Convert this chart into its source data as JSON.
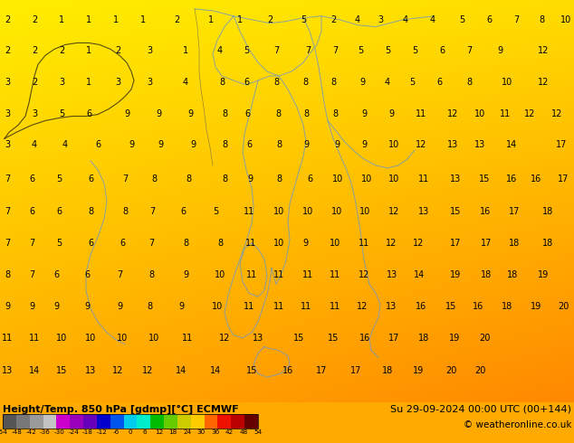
{
  "title_left": "Height/Temp. 850 hPa [gdmp][°C] ECMWF",
  "title_right": "Su 29-09-2024 00:00 UTC (00+144)",
  "copyright": "© weatheronline.co.uk",
  "colorbar_ticks": [
    -54,
    -48,
    -42,
    -36,
    -30,
    -24,
    -18,
    -12,
    -6,
    0,
    6,
    12,
    18,
    24,
    30,
    36,
    42,
    48,
    54
  ],
  "colorbar_colors": [
    "#555555",
    "#787878",
    "#9a9a9a",
    "#c3c3c3",
    "#cc00cc",
    "#9900bb",
    "#6600bb",
    "#0000cc",
    "#0055ee",
    "#00ccee",
    "#00eecc",
    "#00bb00",
    "#66cc00",
    "#cccc00",
    "#ffcc00",
    "#ff6600",
    "#ee1100",
    "#bb0000",
    "#660000"
  ],
  "bg_gradient": [
    [
      "#ffee00",
      "#ffdd00"
    ],
    [
      "#ffaa00",
      "#ff8800"
    ]
  ],
  "coastline_color": "#7799bb",
  "border_color": "#333366",
  "font_color": "#000000",
  "bottom_bg": "#ffaa00",
  "numbers": [
    [
      2,
      2,
      1,
      1,
      1,
      1,
      2,
      1,
      1,
      2,
      5,
      2,
      4,
      3,
      4,
      4,
      5,
      6,
      7,
      8,
      10
    ],
    [
      2,
      2,
      2,
      1,
      2,
      3,
      1,
      4,
      5,
      7,
      7,
      7,
      5,
      5,
      5,
      6,
      7,
      9,
      12
    ],
    [
      3,
      2,
      3,
      1,
      3,
      3,
      4,
      8,
      6,
      8,
      8,
      8,
      9,
      4,
      5,
      6,
      8,
      10,
      12
    ],
    [
      3,
      3,
      5,
      6,
      9,
      9,
      9,
      8,
      6,
      8,
      8,
      8,
      9,
      9,
      11,
      12,
      10,
      11,
      12,
      12
    ],
    [
      3,
      4,
      4,
      6,
      9,
      9,
      9,
      8,
      6,
      8,
      9,
      9,
      9,
      10,
      12,
      13,
      13,
      14,
      17
    ],
    [
      7,
      6,
      5,
      6,
      7,
      8,
      8,
      8,
      9,
      8,
      6,
      10,
      10,
      10,
      11,
      13,
      15,
      16,
      16,
      17
    ],
    [
      7,
      6,
      6,
      8,
      8,
      7,
      6,
      5,
      11,
      10,
      10,
      10,
      10,
      12,
      13,
      15,
      16,
      17,
      18
    ],
    [
      7,
      7,
      5,
      6,
      6,
      7,
      8,
      8,
      11,
      10,
      9,
      10,
      11,
      12,
      12,
      17,
      17,
      18,
      18
    ],
    [
      8,
      7,
      6,
      6,
      7,
      8,
      9,
      10,
      11,
      11,
      11,
      11,
      12,
      13,
      14,
      19,
      18,
      18,
      19
    ],
    [
      9,
      9,
      9,
      9,
      9,
      8,
      9,
      10,
      11,
      11,
      11,
      11,
      12,
      13,
      16,
      15,
      16,
      18,
      19,
      20
    ],
    [
      11,
      11,
      10,
      10,
      10,
      10,
      11,
      12,
      13,
      15,
      15,
      16,
      17,
      18,
      19,
      20
    ],
    [
      13,
      14,
      15,
      13,
      12,
      12,
      14,
      14,
      15,
      16,
      17,
      17,
      18,
      19,
      20,
      20
    ]
  ],
  "row_y_pix": [
    22,
    57,
    92,
    127,
    162,
    200,
    237,
    272,
    307,
    343,
    378,
    415
  ],
  "col_x_starts": [
    [
      8,
      38,
      68,
      98,
      128,
      158,
      195,
      233,
      265,
      298,
      335,
      368,
      395,
      420,
      448,
      478,
      510,
      540,
      570,
      598,
      625
    ],
    [
      8,
      38,
      68,
      98,
      130,
      165,
      205,
      243,
      272,
      305,
      340,
      370,
      398,
      428,
      458,
      488,
      518,
      552,
      600
    ],
    [
      8,
      38,
      68,
      98,
      130,
      165,
      205,
      245,
      272,
      305,
      337,
      368,
      400,
      428,
      455,
      485,
      518,
      560,
      600
    ],
    [
      8,
      38,
      68,
      98,
      140,
      175,
      210,
      248,
      273,
      307,
      338,
      370,
      402,
      432,
      465,
      500,
      530,
      558,
      585,
      615
    ],
    [
      8,
      38,
      72,
      108,
      145,
      177,
      213,
      248,
      275,
      308,
      338,
      372,
      402,
      435,
      465,
      500,
      530,
      565,
      620
    ],
    [
      8,
      35,
      65,
      100,
      138,
      170,
      208,
      248,
      276,
      308,
      342,
      373,
      405,
      435,
      468,
      503,
      535,
      565,
      592,
      622
    ],
    [
      8,
      35,
      65,
      100,
      138,
      168,
      202,
      238,
      275,
      308,
      340,
      372,
      403,
      435,
      468,
      503,
      536,
      568,
      605
    ],
    [
      8,
      35,
      65,
      100,
      135,
      167,
      205,
      243,
      277,
      308,
      337,
      370,
      402,
      432,
      462,
      503,
      537,
      568,
      605
    ],
    [
      8,
      35,
      62,
      96,
      132,
      167,
      205,
      243,
      278,
      308,
      340,
      370,
      402,
      433,
      463,
      503,
      537,
      566,
      600
    ],
    [
      8,
      35,
      62,
      96,
      132,
      165,
      200,
      240,
      275,
      308,
      338,
      370,
      400,
      432,
      465,
      498,
      528,
      560,
      592,
      622
    ],
    [
      8,
      38,
      68,
      100,
      135,
      170,
      207,
      248,
      285,
      330,
      368,
      403,
      435,
      468,
      502,
      535
    ],
    [
      8,
      38,
      68,
      100,
      130,
      163,
      200,
      238,
      278,
      318,
      355,
      393,
      428,
      462,
      498,
      530
    ]
  ]
}
